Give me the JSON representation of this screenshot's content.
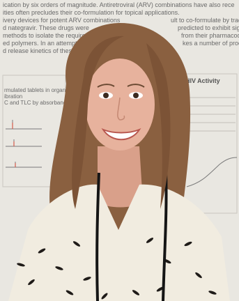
{
  "photo": {
    "subject": "woman-smiling-at-poster",
    "colors": {
      "poster_bg": "#e9e7e1",
      "hair": "#8a6040",
      "skin": "#e7b29d",
      "blouse": "#f1ece0",
      "pattern": "#1f1b18",
      "lanyard": "#151515"
    }
  },
  "poster": {
    "lines": [
      "ication by six orders of magnitude.  Antiretroviral (ARV) combinations have also rece",
      "ities often precludes their co-formulation for topical applications.",
      "ivery devices for potent ARV combinations",
      "d nategravir.  These drugs were",
      "methods to isolate the required",
      "ed polymers.  In an attempt to",
      "d release kinetics of these ARV"
    ],
    "right_header_lines": [
      "ult to co-formulate by tradition",
      "predicted to exhibit signi",
      "from their pharmacod",
      "kes a number of prodrug"
    ],
    "section_title": "HIV Activity",
    "left_panel_lines": [
      "rmulated tablets in organic",
      "ibration",
      "C and TLC by absorbance"
    ]
  }
}
